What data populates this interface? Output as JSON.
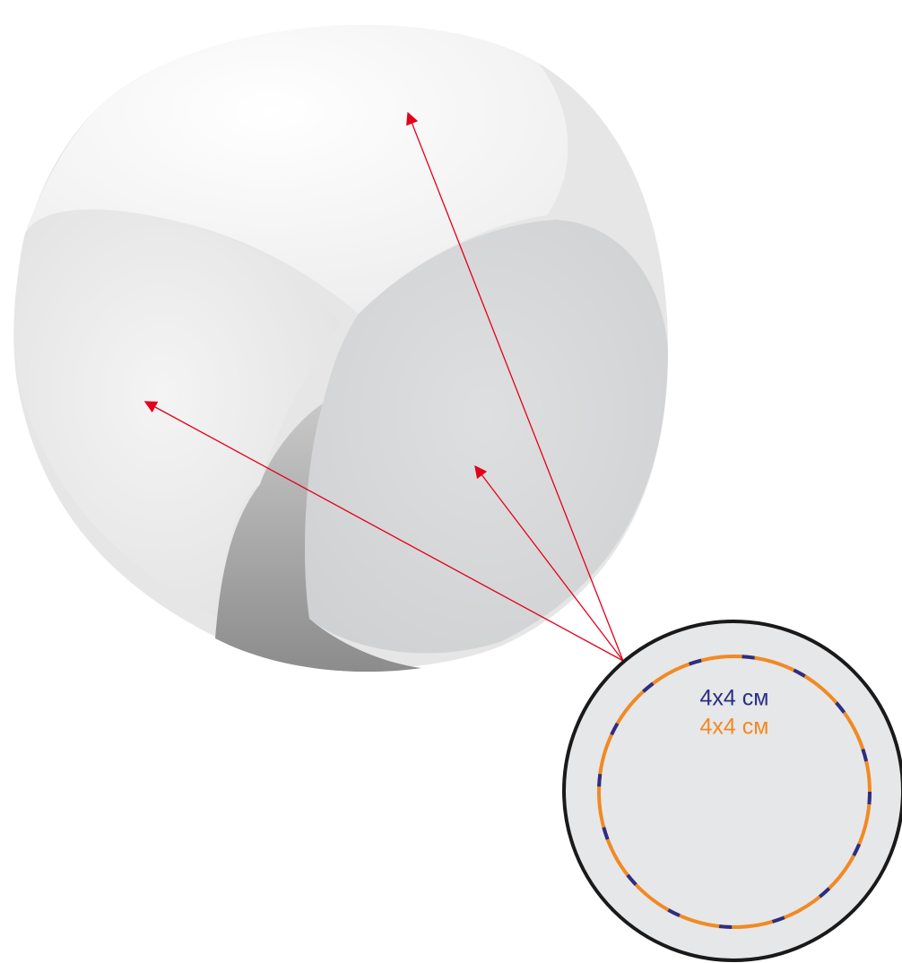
{
  "print_area": {
    "labels": [
      "4x4 см",
      "4x4 см"
    ]
  }
}
